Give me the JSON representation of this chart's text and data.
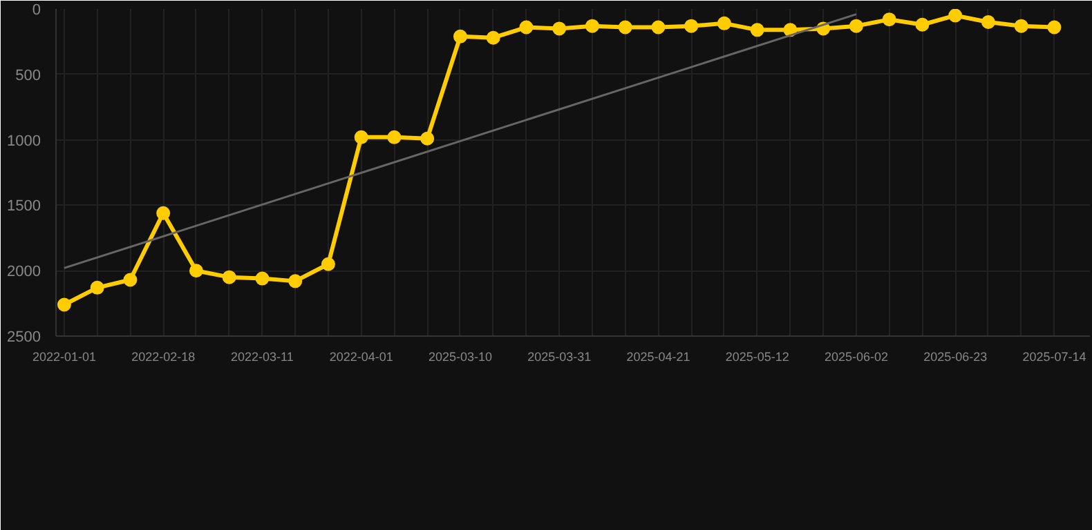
{
  "chart_data": {
    "type": "line",
    "categories": [
      "2022-01-01",
      null,
      null,
      "2022-02-18",
      null,
      null,
      "2022-03-11",
      null,
      null,
      "2022-04-01",
      null,
      null,
      "2025-03-10",
      null,
      null,
      "2025-03-31",
      null,
      null,
      "2025-04-21",
      null,
      null,
      "2025-05-12",
      null,
      null,
      "2025-06-02",
      null,
      null,
      "2025-06-23",
      null,
      null,
      "2025-07-14"
    ],
    "series": [
      {
        "color": "#ffcc00",
        "marker": "circle",
        "values": [
          2260,
          2130,
          2070,
          1560,
          2000,
          2050,
          2060,
          2080,
          1950,
          980,
          980,
          990,
          210,
          220,
          140,
          150,
          130,
          140,
          140,
          130,
          110,
          160,
          160,
          150,
          130,
          80,
          120,
          50,
          100,
          130,
          140
        ]
      },
      {
        "type": "line",
        "color": "#666666",
        "marker": "none",
        "values": [
          1980,
          null,
          null,
          null,
          null,
          null,
          null,
          null,
          null,
          null,
          null,
          null,
          null,
          null,
          null,
          null,
          null,
          null,
          null,
          null,
          null,
          null,
          null,
          null,
          40,
          null,
          null,
          null,
          null,
          null,
          null
        ]
      }
    ],
    "ylim": [
      2500,
      0
    ],
    "yticks": [
      0,
      500,
      1000,
      1500,
      2000,
      2500
    ],
    "grid": true
  }
}
